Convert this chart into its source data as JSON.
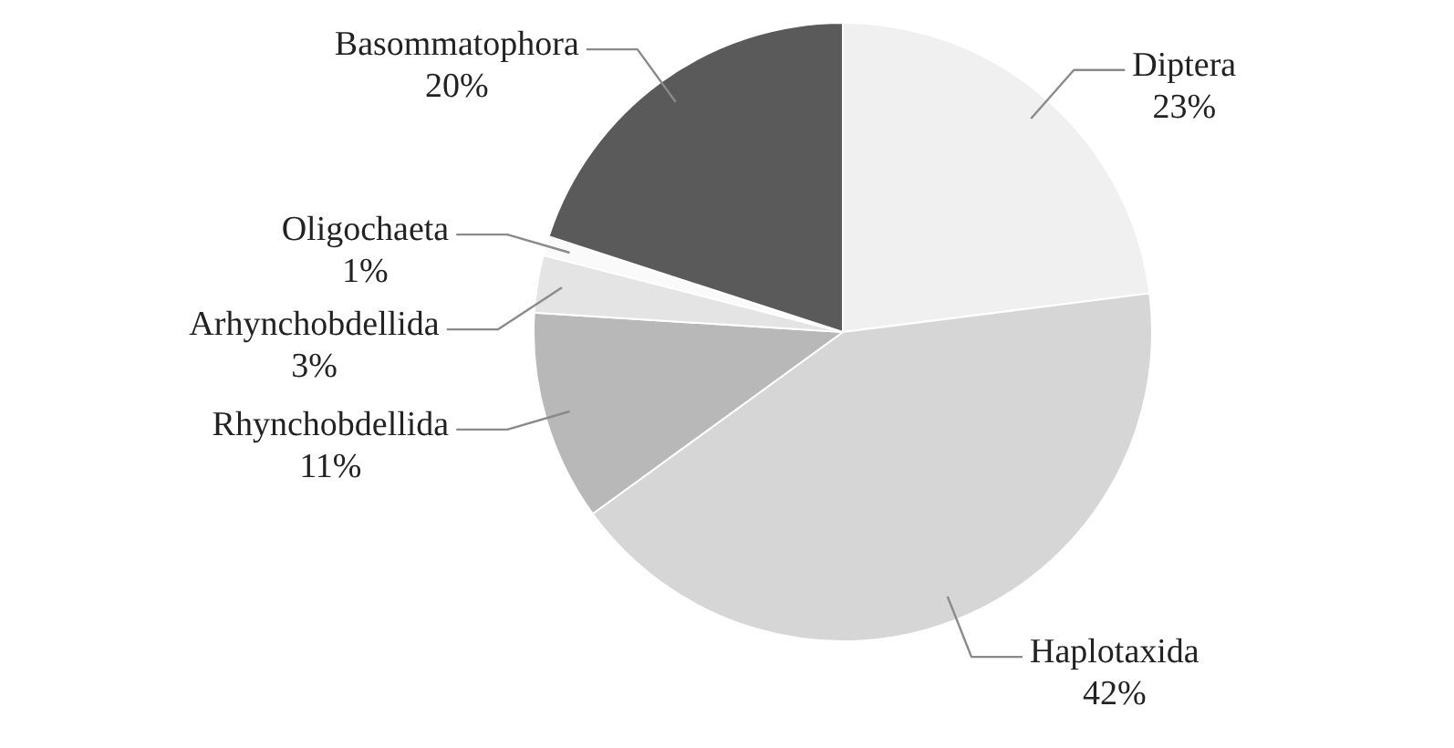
{
  "chart_data": {
    "type": "pie",
    "categories": [
      "Diptera",
      "Haplotaxida",
      "Rhynchobdellida",
      "Arhynchobdellida",
      "Oligochaeta",
      "Basommatophora"
    ],
    "values": [
      23,
      42,
      11,
      3,
      1,
      20
    ],
    "value_labels": [
      "23%",
      "42%",
      "11%",
      "3%",
      "1%",
      "20%"
    ],
    "colors": [
      "#f0f0f0",
      "#d6d6d6",
      "#b8b8b8",
      "#e4e4e4",
      "#fafafa",
      "#5a5a5a"
    ],
    "legend": false
  }
}
